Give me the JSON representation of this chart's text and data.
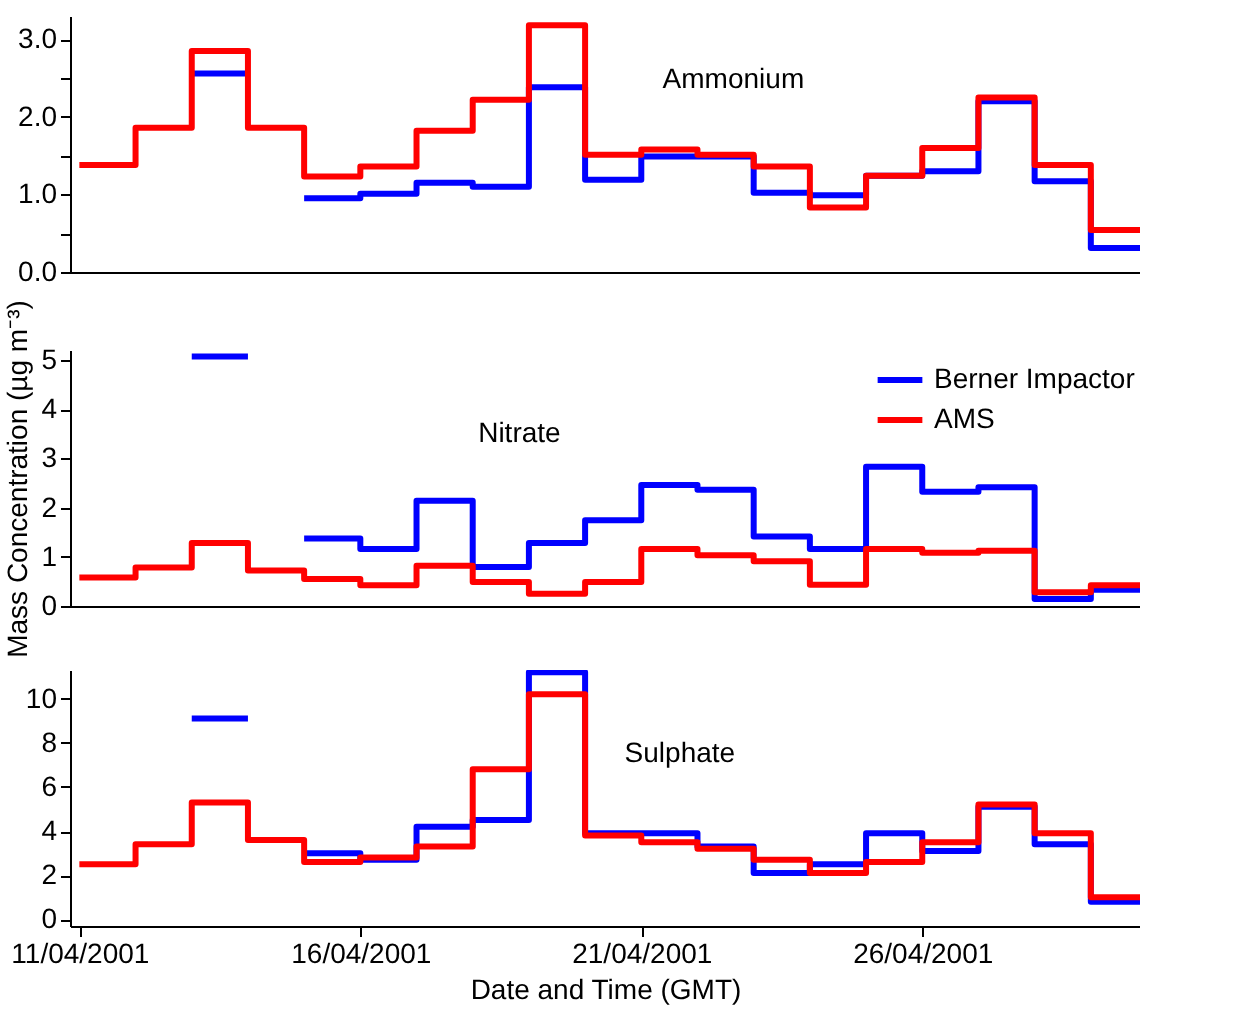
{
  "chart_data": [
    {
      "type": "step",
      "annotations": [
        "Ammonium"
      ],
      "x": [
        "2001-04-11",
        "2001-04-12",
        "2001-04-13",
        "2001-04-14",
        "2001-04-15",
        "2001-04-16",
        "2001-04-17",
        "2001-04-18",
        "2001-04-19",
        "2001-04-20",
        "2001-04-21",
        "2001-04-22",
        "2001-04-23",
        "2001-04-24",
        "2001-04-25",
        "2001-04-26",
        "2001-04-27",
        "2001-04-28",
        "2001-04-29"
      ],
      "series": [
        {
          "color": "#0000ff",
          "values": [
            null,
            null,
            2.56,
            null,
            0.95,
            1.01,
            1.15,
            1.1,
            2.38,
            1.19,
            1.49,
            1.49,
            1.02,
            0.99,
            1.24,
            1.3,
            2.2,
            1.17,
            0.31
          ]
        },
        {
          "color": "#ff0000",
          "values": [
            1.38,
            1.86,
            2.85,
            1.86,
            1.23,
            1.36,
            1.82,
            2.22,
            3.18,
            1.51,
            1.58,
            1.51,
            1.36,
            0.83,
            1.24,
            1.6,
            2.25,
            1.38,
            0.54
          ]
        }
      ],
      "xlim": [
        "2001-04-10T20:00",
        "2001-04-29T21:00"
      ],
      "ylim": [
        0,
        3.3
      ],
      "yticks": [
        {
          "value": 0,
          "label": "0.0"
        },
        {
          "value": 0.5,
          "label": null
        },
        {
          "value": 1,
          "label": "1.0"
        },
        {
          "value": 1.5,
          "label": null
        },
        {
          "value": 2,
          "label": "2.0"
        },
        {
          "value": 2.5,
          "label": null
        },
        {
          "value": 3,
          "label": "3.0"
        }
      ],
      "tick_labels": "y",
      "grid": false,
      "legend": false,
      "marker": "none",
      "line_style": "solid"
    },
    {
      "type": "step",
      "annotations": [
        "Nitrate"
      ],
      "ylabel": "Mass Concentration (µg m⁻³)",
      "x": [
        "2001-04-11",
        "2001-04-12",
        "2001-04-13",
        "2001-04-14",
        "2001-04-15",
        "2001-04-16",
        "2001-04-17",
        "2001-04-18",
        "2001-04-19",
        "2001-04-20",
        "2001-04-21",
        "2001-04-22",
        "2001-04-23",
        "2001-04-24",
        "2001-04-25",
        "2001-04-26",
        "2001-04-27",
        "2001-04-28",
        "2001-04-29"
      ],
      "series": [
        {
          "name": "Berner Impactor",
          "color": "#0000ff",
          "values": [
            null,
            null,
            5.07,
            null,
            1.37,
            1.16,
            2.14,
            0.79,
            1.28,
            1.74,
            2.46,
            2.36,
            1.41,
            1.16,
            2.83,
            2.32,
            2.41,
            0.14,
            0.33
          ]
        },
        {
          "name": "AMS",
          "color": "#ff0000",
          "values": [
            0.58,
            0.78,
            1.28,
            0.72,
            0.55,
            0.42,
            0.82,
            0.49,
            0.25,
            0.49,
            1.16,
            1.03,
            0.91,
            0.43,
            1.16,
            1.08,
            1.12,
            0.28,
            0.42
          ]
        }
      ],
      "xlim": [
        "2001-04-10T20:00",
        "2001-04-29T21:00"
      ],
      "ylim": [
        0,
        5.2
      ],
      "yticks": [
        0,
        1,
        2,
        3,
        4,
        5
      ],
      "tick_labels": "y",
      "grid": false,
      "legend": "top right",
      "marker": "none",
      "line_style": "solid"
    },
    {
      "type": "step",
      "annotations": [
        "Sulphate"
      ],
      "xlabel": "Date and Time (GMT)",
      "x": [
        "2001-04-11",
        "2001-04-12",
        "2001-04-13",
        "2001-04-14",
        "2001-04-15",
        "2001-04-16",
        "2001-04-17",
        "2001-04-18",
        "2001-04-19",
        "2001-04-20",
        "2001-04-21",
        "2001-04-22",
        "2001-04-23",
        "2001-04-24",
        "2001-04-25",
        "2001-04-26",
        "2001-04-27",
        "2001-04-28",
        "2001-04-29"
      ],
      "series": [
        {
          "color": "#0000ff",
          "values": [
            null,
            null,
            9.1,
            null,
            3.0,
            2.7,
            4.2,
            4.5,
            11.2,
            3.9,
            3.9,
            3.3,
            2.1,
            2.5,
            3.9,
            3.1,
            5.1,
            3.4,
            0.8
          ]
        },
        {
          "color": "#ff0000",
          "values": [
            2.5,
            3.4,
            5.3,
            3.6,
            2.6,
            2.8,
            3.3,
            6.8,
            10.2,
            3.8,
            3.5,
            3.2,
            2.7,
            2.1,
            2.6,
            3.5,
            5.2,
            3.9,
            1.0
          ]
        }
      ],
      "xlim": [
        "2001-04-10T20:00",
        "2001-04-29T21:00"
      ],
      "ylim": [
        -0.3,
        11.3
      ],
      "yticks": [
        0,
        2,
        4,
        6,
        8,
        10
      ],
      "xticks": [
        {
          "value": "2001-04-11",
          "label": "11/04/2001"
        },
        {
          "value": "2001-04-16",
          "label": "16/04/2001"
        },
        {
          "value": "2001-04-21",
          "label": "21/04/2001"
        },
        {
          "value": "2001-04-26",
          "label": "26/04/2001"
        }
      ],
      "grid": false,
      "legend": false,
      "marker": "none",
      "line_style": "solid"
    }
  ]
}
